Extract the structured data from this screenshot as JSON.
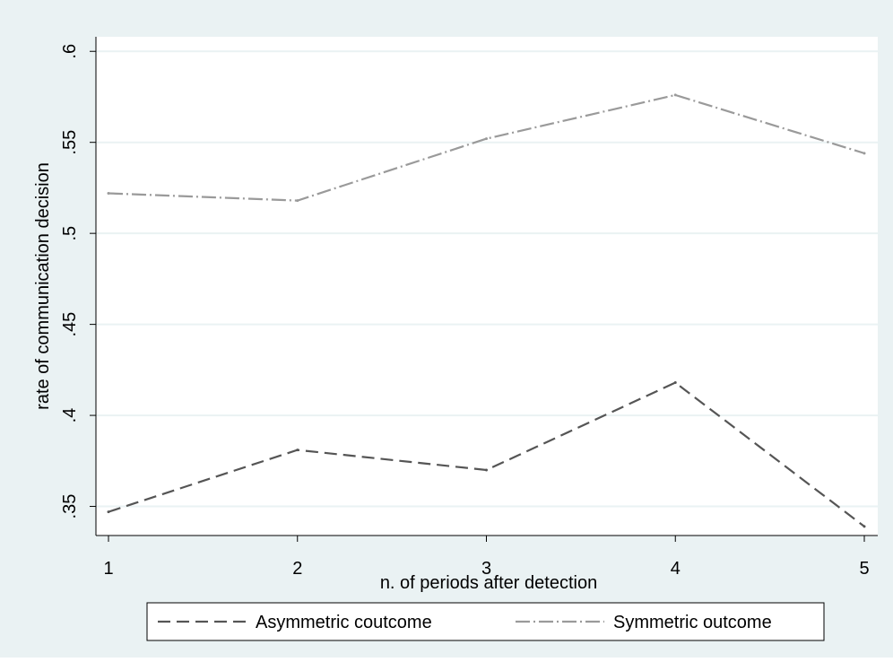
{
  "chart_data": {
    "type": "line",
    "title": "",
    "xlabel": "n. of periods after detection",
    "ylabel": "rate of communication decision",
    "x": [
      1,
      2,
      3,
      4,
      5
    ],
    "x_ticks": [
      "1",
      "2",
      "3",
      "4",
      "5"
    ],
    "y_ticks": [
      {
        "value": 0.35,
        "label": ".35"
      },
      {
        "value": 0.4,
        "label": ".4"
      },
      {
        "value": 0.45,
        "label": ".45"
      },
      {
        "value": 0.5,
        "label": ".5"
      },
      {
        "value": 0.55,
        "label": ".55"
      },
      {
        "value": 0.6,
        "label": ".6"
      }
    ],
    "xlim": [
      1,
      5
    ],
    "ylim": [
      0.334,
      0.608
    ],
    "grid": true,
    "legend_position": "bottom",
    "series": [
      {
        "name": "Asymmetric coutcome",
        "values": [
          0.347,
          0.381,
          0.37,
          0.418,
          0.339
        ],
        "color": "#555555",
        "dash": "dashed"
      },
      {
        "name": "Symmetric outcome",
        "values": [
          0.522,
          0.518,
          0.552,
          0.576,
          0.544
        ],
        "color": "#9a9a9a",
        "dash": "dash-dot"
      }
    ],
    "colors": {
      "background_outer": "#eaf2f3",
      "plot_background": "#ffffff",
      "grid": "#eaf2f3"
    }
  }
}
